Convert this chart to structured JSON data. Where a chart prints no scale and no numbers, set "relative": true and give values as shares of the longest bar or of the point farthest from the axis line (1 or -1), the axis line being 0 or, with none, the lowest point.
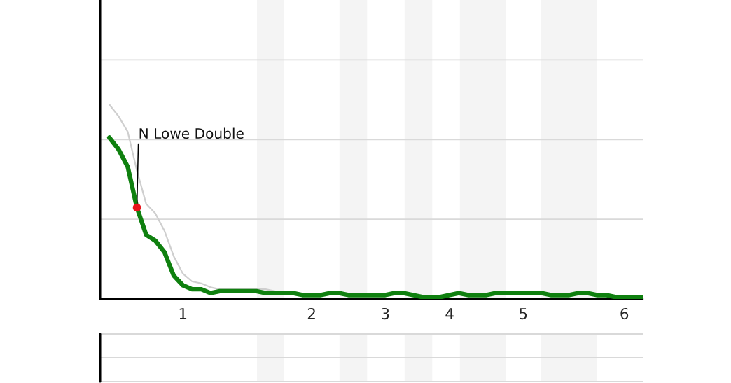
{
  "chart_data": {
    "type": "line",
    "relative": true,
    "categories": [
      null,
      null,
      null,
      null,
      null,
      null,
      null,
      null,
      null,
      "1",
      null,
      null,
      null,
      null,
      null,
      null,
      null,
      null,
      null,
      null,
      null,
      null,
      null,
      "2",
      null,
      null,
      null,
      null,
      null,
      null,
      null,
      "3",
      null,
      null,
      null,
      null,
      null,
      null,
      "4",
      null,
      null,
      null,
      null,
      null,
      null,
      null,
      "5",
      null,
      null,
      null,
      null,
      null,
      null,
      null,
      null,
      null,
      null,
      "6",
      null,
      null
    ],
    "ref_lines": [
      {
        "axis": "y",
        "value": 0.41,
        "color": "#d9d9d9"
      },
      {
        "axis": "y",
        "value": 0.82,
        "color": "#d9d9d9"
      },
      {
        "axis": "y",
        "value": 1.23,
        "color": "#d9d9d9"
      }
    ],
    "annotations": [
      "N Lowe Double"
    ],
    "series": [
      {
        "color": "#cfcfcf",
        "values": [
          null,
          1.0,
          0.94,
          0.86,
          0.66,
          0.49,
          0.44,
          0.35,
          0.22,
          0.13,
          0.09,
          0.08,
          0.06,
          0.05,
          0.05,
          0.05,
          0.05,
          0.05,
          0.05,
          0.04,
          null,
          null,
          null,
          null,
          null,
          null,
          null,
          null,
          null,
          null,
          null,
          null,
          null,
          null,
          null,
          null,
          null,
          null,
          null,
          null,
          null,
          null,
          null,
          null,
          null,
          null,
          null,
          null,
          null,
          null,
          null,
          null,
          null,
          null,
          null,
          null,
          null,
          null,
          null,
          null
        ]
      },
      {
        "color": "#0f800f",
        "values": [
          null,
          0.83,
          0.77,
          0.68,
          0.47,
          0.33,
          0.3,
          0.24,
          0.12,
          0.07,
          0.05,
          0.05,
          0.03,
          0.04,
          0.04,
          0.04,
          0.04,
          0.04,
          0.03,
          0.03,
          0.03,
          0.03,
          0.02,
          0.02,
          0.02,
          0.03,
          0.03,
          0.02,
          0.02,
          0.02,
          0.02,
          0.02,
          0.03,
          0.03,
          0.02,
          0.01,
          0.01,
          0.01,
          0.02,
          0.03,
          0.02,
          0.02,
          0.02,
          0.03,
          0.03,
          0.03,
          0.03,
          0.03,
          0.03,
          0.02,
          0.02,
          0.02,
          0.03,
          0.03,
          0.02,
          0.02,
          0.01,
          0.01,
          0.01,
          0.01
        ]
      },
      {
        "type": "scatter",
        "color": "#e8141b",
        "values": [
          null,
          null,
          null,
          null,
          0.47,
          null,
          null,
          null,
          null,
          null,
          null,
          null,
          null,
          null,
          null,
          null,
          null,
          null,
          null,
          null,
          null,
          null,
          null,
          null,
          null,
          null,
          null,
          null,
          null,
          null,
          null,
          null,
          null,
          null,
          null,
          null,
          null,
          null,
          null,
          null,
          null,
          null,
          null,
          null,
          null,
          null,
          null,
          null,
          null,
          null,
          null,
          null,
          null,
          null,
          null,
          null,
          null,
          null,
          null,
          null
        ]
      }
    ]
  }
}
